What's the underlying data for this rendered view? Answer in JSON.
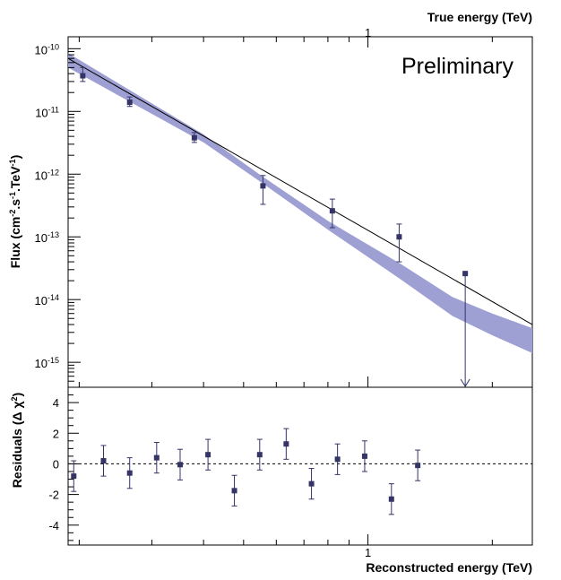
{
  "chart_data": [
    {
      "panel": "spectrum",
      "type": "scatter",
      "title": "",
      "xscale": "log",
      "yscale": "log",
      "xlim": [
        0.188,
        2.5
      ],
      "ylim": [
        4e-16,
        1.55e-10
      ],
      "top_axis_label": "True energy (TeV)",
      "ylabel_parts": {
        "base": "Flux (cm",
        "e1": "-2",
        "mid": ".s",
        "e2": "-1",
        "mid2": ".TeV",
        "e3": "-1",
        "tail": ")"
      },
      "x_tick_labels": [
        {
          "value": 1,
          "label": "1"
        }
      ],
      "y_tick_labels": [
        {
          "value": 1e-10,
          "base": "10",
          "exp": "-10"
        },
        {
          "value": 1e-11,
          "base": "10",
          "exp": "-11"
        },
        {
          "value": 1e-12,
          "base": "10",
          "exp": "-12"
        },
        {
          "value": 1e-13,
          "base": "10",
          "exp": "-13"
        },
        {
          "value": 1e-14,
          "base": "10",
          "exp": "-14"
        },
        {
          "value": 1e-15,
          "base": "10",
          "exp": "-15"
        }
      ],
      "annotation": "Preliminary",
      "fit_line": {
        "energy": [
          0.188,
          2.5
        ],
        "flux": [
          7e-11,
          4e-15
        ]
      },
      "confidence_band": {
        "energy": [
          0.188,
          0.4,
          0.55,
          0.8,
          1.2,
          1.6,
          2.0,
          2.5
        ],
        "flux_lower": [
          5e-11,
          3.2e-12,
          7.5e-13,
          1.3e-13,
          2.1e-14,
          5.5e-15,
          2.7e-15,
          1.4e-15
        ],
        "flux_upper": [
          8.5e-11,
          4.3e-12,
          9.6e-13,
          1.8e-13,
          3.7e-14,
          1.1e-14,
          6e-15,
          3.5e-15
        ]
      },
      "points": [
        {
          "energy": 0.204,
          "flux": 3.7e-11,
          "err_low": 3e-11,
          "err_high": 5e-11
        },
        {
          "energy": 0.265,
          "flux": 1.4e-11,
          "err_low": 1.2e-11,
          "err_high": 1.7e-11
        },
        {
          "energy": 0.38,
          "flux": 3.8e-12,
          "err_low": 3.2e-12,
          "err_high": 4.6e-12
        },
        {
          "energy": 0.557,
          "flux": 6.5e-13,
          "err_low": 3.3e-13,
          "err_high": 9.5e-13
        },
        {
          "energy": 0.82,
          "flux": 2.6e-13,
          "err_low": 1.4e-13,
          "err_high": 4e-13
        },
        {
          "energy": 1.19,
          "flux": 1e-13,
          "err_low": 4e-14,
          "err_high": 1.6e-13
        }
      ],
      "upper_limits": [
        {
          "energy": 1.72,
          "flux": 2.6e-14
        }
      ]
    },
    {
      "panel": "residuals",
      "type": "scatter",
      "title": "",
      "xscale": "log",
      "xlim": [
        0.188,
        2.5
      ],
      "ylim": [
        -5.3,
        5.0
      ],
      "xlabel": "Reconstructed energy (TeV)",
      "ylabel_parts": {
        "base": "Residuals (Δ χ",
        "e1": "2",
        "tail": ")"
      },
      "x_tick_labels": [
        {
          "value": 1,
          "label": "1"
        }
      ],
      "y_tick_labels": [
        {
          "value": 4,
          "label": "4"
        },
        {
          "value": 2,
          "label": "2"
        },
        {
          "value": 0,
          "label": "0"
        },
        {
          "value": -2,
          "label": "-2"
        },
        {
          "value": -4,
          "label": "-4"
        }
      ],
      "reference_line": 0,
      "points": [
        {
          "energy": 0.194,
          "value": -0.8,
          "err": 1.0
        },
        {
          "energy": 0.229,
          "value": 0.2,
          "err": 1.0
        },
        {
          "energy": 0.265,
          "value": -0.6,
          "err": 1.0
        },
        {
          "energy": 0.308,
          "value": 0.4,
          "err": 1.0
        },
        {
          "energy": 0.351,
          "value": -0.05,
          "err": 1.0
        },
        {
          "energy": 0.41,
          "value": 0.6,
          "err": 1.0
        },
        {
          "energy": 0.475,
          "value": -1.75,
          "err": 1.0
        },
        {
          "energy": 0.547,
          "value": 0.6,
          "err": 1.0
        },
        {
          "energy": 0.634,
          "value": 1.3,
          "err": 1.0
        },
        {
          "energy": 0.73,
          "value": -1.3,
          "err": 1.0
        },
        {
          "energy": 0.844,
          "value": 0.3,
          "err": 1.0
        },
        {
          "energy": 0.982,
          "value": 0.5,
          "err": 1.0
        },
        {
          "energy": 1.14,
          "value": -2.3,
          "err": 1.0
        },
        {
          "energy": 1.32,
          "value": -0.1,
          "err": 1.0
        }
      ]
    }
  ],
  "colors": {
    "band": "#9e9fd3",
    "marker": "#343466",
    "line": "#000000",
    "frame": "#000000",
    "background": "#ffffff"
  }
}
